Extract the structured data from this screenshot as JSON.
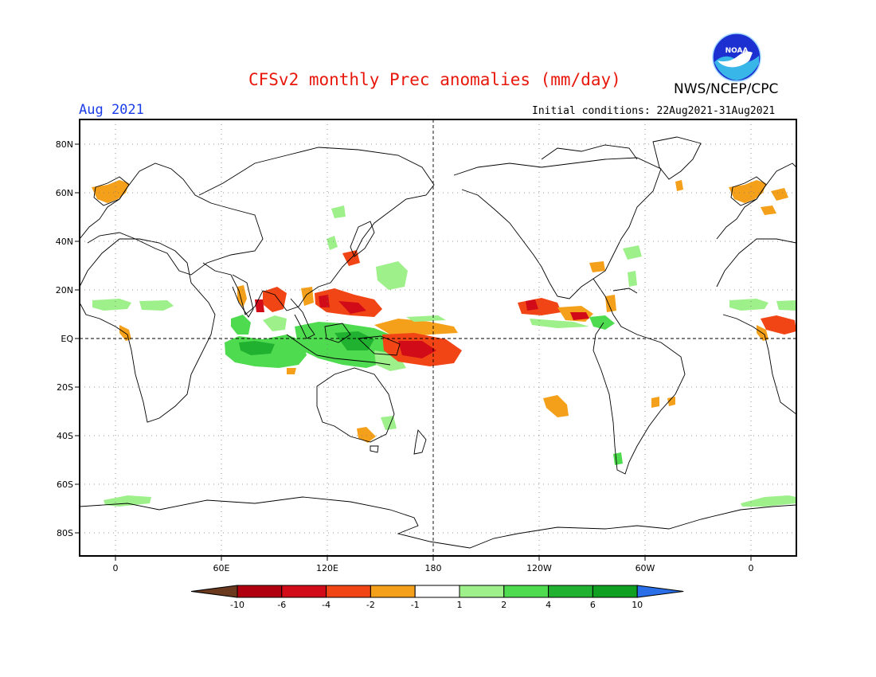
{
  "title": "CFSv2 monthly Prec anomalies (mm/day)",
  "agency": "NWS/NCEP/CPC",
  "logo_text": "NOAA",
  "period": "Aug 2021",
  "initial_conditions": "Initial conditions: 22Aug2021-31Aug2021",
  "lat_labels": [
    "80N",
    "60N",
    "40N",
    "20N",
    "EQ",
    "20S",
    "40S",
    "60S",
    "80S"
  ],
  "lon_labels": [
    "0",
    "60E",
    "120E",
    "180",
    "120W",
    "60W",
    "0"
  ],
  "colorbar": {
    "labels": [
      "-10",
      "-6",
      "-4",
      "-2",
      "-1",
      "1",
      "2",
      "4",
      "6",
      "10"
    ],
    "colors": [
      "#6b3a1e",
      "#b0000f",
      "#d10b17",
      "#f24515",
      "#f5a01a",
      "#ffffff",
      "#9ef08a",
      "#4fdb50",
      "#21b130",
      "#10a021",
      "#2a6fe8"
    ]
  },
  "colors": {
    "land_outline": "#000000",
    "grid": "#666666",
    "title": "#e8170b",
    "period": "#1a3ce8"
  }
}
